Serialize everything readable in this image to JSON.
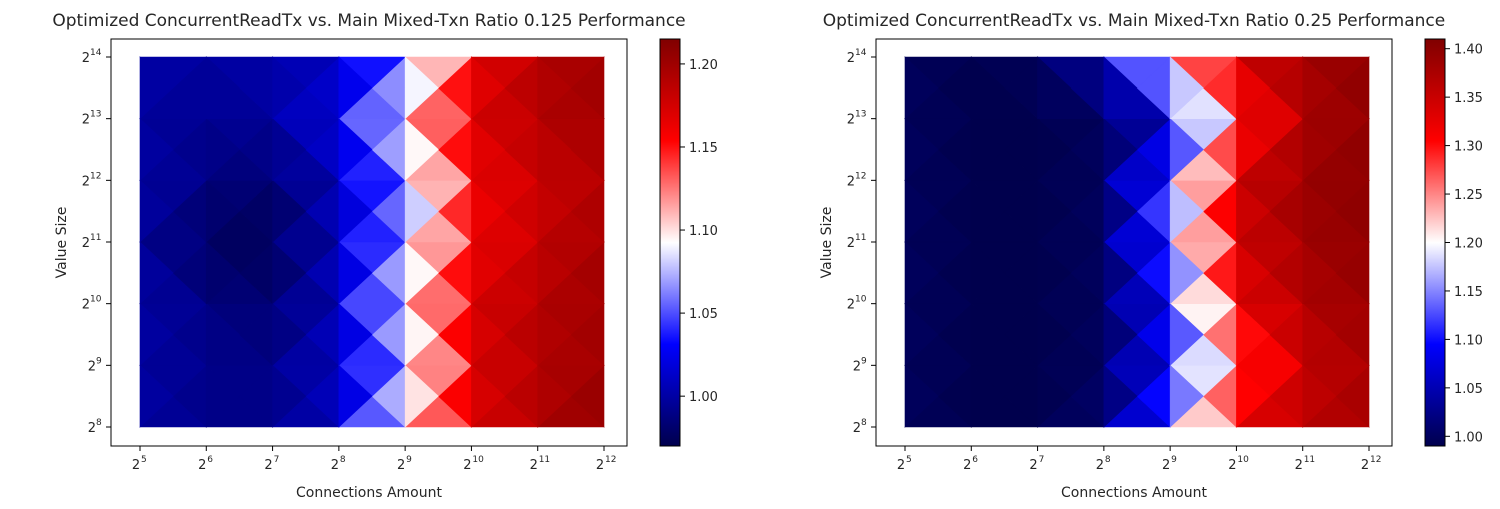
{
  "chart_data": [
    {
      "type": "heatmap",
      "title": "Optimized ConcurrentReadTx vs. Main Mixed-Txn Ratio 0.125 Performance",
      "xlabel": "Connections Amount",
      "ylabel": "Value Size",
      "x_ticks": [
        {
          "base": "2",
          "exp": "5"
        },
        {
          "base": "2",
          "exp": "6"
        },
        {
          "base": "2",
          "exp": "7"
        },
        {
          "base": "2",
          "exp": "8"
        },
        {
          "base": "2",
          "exp": "9"
        },
        {
          "base": "2",
          "exp": "10"
        },
        {
          "base": "2",
          "exp": "11"
        },
        {
          "base": "2",
          "exp": "12"
        }
      ],
      "y_ticks": [
        {
          "base": "2",
          "exp": "8"
        },
        {
          "base": "2",
          "exp": "9"
        },
        {
          "base": "2",
          "exp": "10"
        },
        {
          "base": "2",
          "exp": "11"
        },
        {
          "base": "2",
          "exp": "12"
        },
        {
          "base": "2",
          "exp": "13"
        },
        {
          "base": "2",
          "exp": "14"
        }
      ],
      "x_values": [
        32,
        64,
        128,
        256,
        512,
        1024,
        2048,
        4096
      ],
      "y_values": [
        256,
        512,
        1024,
        2048,
        4096,
        8192,
        16384
      ],
      "values": [
        [
          1.0,
          0.99,
          0.99,
          1.01,
          1.1,
          1.17,
          1.19,
          1.21
        ],
        [
          1.0,
          0.99,
          0.99,
          1.01,
          1.07,
          1.17,
          1.19,
          1.2
        ],
        [
          1.0,
          0.99,
          0.98,
          1.01,
          1.09,
          1.17,
          1.19,
          1.2
        ],
        [
          1.0,
          0.975,
          0.975,
          1.01,
          1.07,
          1.16,
          1.18,
          1.2
        ],
        [
          1.0,
          0.99,
          0.98,
          1.01,
          1.06,
          1.16,
          1.18,
          1.19
        ],
        [
          1.0,
          0.99,
          1.0,
          1.02,
          1.1,
          1.17,
          1.19,
          1.2
        ],
        [
          1.0,
          1.0,
          1.0,
          1.01,
          1.05,
          1.16,
          1.19,
          1.2
        ]
      ],
      "colorbar": {
        "min": 0.97,
        "max": 1.215,
        "ticks": [
          "1.00",
          "1.05",
          "1.10",
          "1.15",
          "1.20"
        ],
        "cmap": "seismic"
      }
    },
    {
      "type": "heatmap",
      "title": "Optimized ConcurrentReadTx vs. Main Mixed-Txn Ratio 0.25 Performance",
      "xlabel": "Connections Amount",
      "ylabel": "Value Size",
      "x_ticks": [
        {
          "base": "2",
          "exp": "5"
        },
        {
          "base": "2",
          "exp": "6"
        },
        {
          "base": "2",
          "exp": "7"
        },
        {
          "base": "2",
          "exp": "8"
        },
        {
          "base": "2",
          "exp": "9"
        },
        {
          "base": "2",
          "exp": "10"
        },
        {
          "base": "2",
          "exp": "11"
        },
        {
          "base": "2",
          "exp": "12"
        }
      ],
      "y_ticks": [
        {
          "base": "2",
          "exp": "8"
        },
        {
          "base": "2",
          "exp": "9"
        },
        {
          "base": "2",
          "exp": "10"
        },
        {
          "base": "2",
          "exp": "11"
        },
        {
          "base": "2",
          "exp": "12"
        },
        {
          "base": "2",
          "exp": "13"
        },
        {
          "base": "2",
          "exp": "14"
        }
      ],
      "x_values": [
        32,
        64,
        128,
        256,
        512,
        1024,
        2048,
        4096
      ],
      "y_values": [
        256,
        512,
        1024,
        2048,
        4096,
        8192,
        16384
      ],
      "values": [
        [
          1.0,
          0.99,
          0.99,
          1.01,
          1.13,
          1.33,
          1.36,
          1.38
        ],
        [
          1.0,
          0.99,
          0.99,
          1.0,
          1.1,
          1.26,
          1.35,
          1.38
        ],
        [
          1.0,
          0.99,
          0.99,
          1.0,
          1.1,
          1.32,
          1.37,
          1.39
        ],
        [
          1.0,
          0.99,
          0.99,
          1.0,
          1.14,
          1.34,
          1.38,
          1.4
        ],
        [
          1.0,
          0.99,
          0.99,
          1.0,
          1.14,
          1.34,
          1.39,
          1.4
        ],
        [
          1.0,
          0.99,
          0.99,
          1.0,
          1.05,
          1.28,
          1.37,
          1.4
        ],
        [
          1.0,
          0.99,
          1.0,
          1.05,
          1.25,
          1.35,
          1.38,
          1.4
        ]
      ],
      "colorbar": {
        "min": 0.99,
        "max": 1.41,
        "ticks": [
          "1.00",
          "1.05",
          "1.10",
          "1.15",
          "1.20",
          "1.25",
          "1.30",
          "1.35",
          "1.40"
        ],
        "cmap": "seismic"
      }
    }
  ]
}
